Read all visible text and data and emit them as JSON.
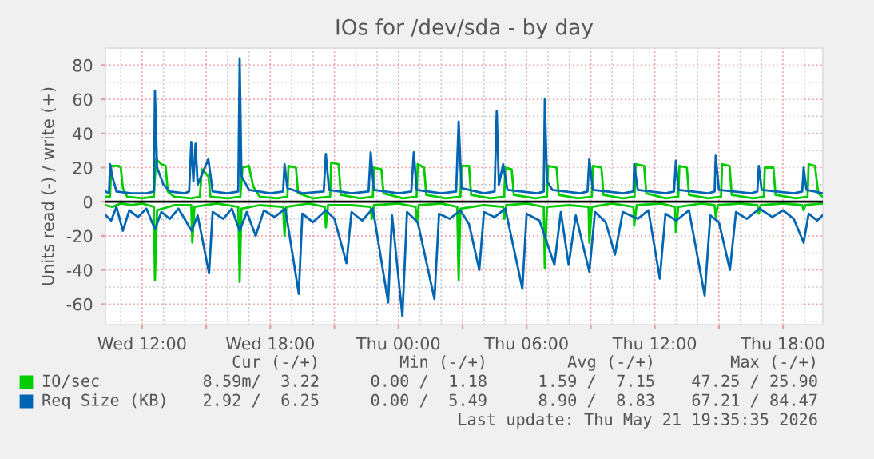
{
  "chart_data": {
    "type": "line",
    "title": "IOs for /dev/sda - by day",
    "ylabel": "Units read (-) / write (+)",
    "xlim": [
      "2026-05-20T10:17",
      "2026-05-21T19:52"
    ],
    "ylim": [
      -72,
      90
    ],
    "xticks": [
      {
        "value": "2026-05-20T12:00",
        "label": "Wed 12:00"
      },
      {
        "value": "2026-05-20T15:00",
        "label": null
      },
      {
        "value": "2026-05-20T18:00",
        "label": "Wed 18:00"
      },
      {
        "value": "2026-05-20T21:00",
        "label": null
      },
      {
        "value": "2026-05-21T00:00",
        "label": "Thu 00:00"
      },
      {
        "value": "2026-05-21T03:00",
        "label": null
      },
      {
        "value": "2026-05-21T06:00",
        "label": "Thu 06:00"
      },
      {
        "value": "2026-05-21T09:00",
        "label": null
      },
      {
        "value": "2026-05-21T12:00",
        "label": "Thu 12:00"
      },
      {
        "value": "2026-05-21T15:00",
        "label": null
      },
      {
        "value": "2026-05-21T18:00",
        "label": "Thu 18:00"
      }
    ],
    "yticks": [
      -60,
      -40,
      -20,
      0,
      20,
      40,
      60,
      80
    ],
    "grid": true,
    "legend": "bottom",
    "ref_lines": [
      {
        "axis": "y",
        "value": 0,
        "label": null,
        "color": "#000000"
      }
    ],
    "series": [
      {
        "name": "IO/sec",
        "color": "#00cc00",
        "x": [
          "2026-05-20T10:18",
          "2026-05-20T10:30",
          "2026-05-20T10:33",
          "2026-05-20T10:54",
          "2026-05-20T11:00",
          "2026-05-20T11:06",
          "2026-05-20T11:18",
          "2026-05-20T12:00",
          "2026-05-20T12:33",
          "2026-05-20T12:39",
          "2026-05-20T12:54",
          "2026-05-20T13:06",
          "2026-05-20T13:12",
          "2026-05-20T13:30",
          "2026-05-20T14:18",
          "2026-05-20T14:42",
          "2026-05-20T14:48",
          "2026-05-20T15:06",
          "2026-05-20T15:12",
          "2026-05-20T16:00",
          "2026-05-20T16:36",
          "2026-05-20T16:42",
          "2026-05-20T17:00",
          "2026-05-20T17:12",
          "2026-05-20T17:30",
          "2026-05-20T18:18",
          "2026-05-20T18:48",
          "2026-05-20T18:51",
          "2026-05-20T19:12",
          "2026-05-20T19:18",
          "2026-05-20T20:00",
          "2026-05-20T20:48",
          "2026-05-20T20:51",
          "2026-05-20T21:12",
          "2026-05-20T21:18",
          "2026-05-20T22:12",
          "2026-05-20T22:48",
          "2026-05-20T22:51",
          "2026-05-20T23:12",
          "2026-05-20T23:18",
          "2026-05-21T00:12",
          "2026-05-21T00:51",
          "2026-05-21T00:54",
          "2026-05-21T01:12",
          "2026-05-21T01:18",
          "2026-05-21T02:12",
          "2026-05-21T02:54",
          "2026-05-21T02:57",
          "2026-05-21T03:18",
          "2026-05-21T03:24",
          "2026-05-21T04:18",
          "2026-05-21T04:57",
          "2026-05-21T05:00",
          "2026-05-21T05:18",
          "2026-05-21T05:24",
          "2026-05-21T06:24",
          "2026-05-21T06:57",
          "2026-05-21T07:00",
          "2026-05-21T07:24",
          "2026-05-21T07:30",
          "2026-05-21T08:24",
          "2026-05-21T09:03",
          "2026-05-21T09:06",
          "2026-05-21T09:30",
          "2026-05-21T09:36",
          "2026-05-21T10:30",
          "2026-05-21T11:03",
          "2026-05-21T11:06",
          "2026-05-21T11:30",
          "2026-05-21T11:36",
          "2026-05-21T12:30",
          "2026-05-21T13:06",
          "2026-05-21T13:09",
          "2026-05-21T13:30",
          "2026-05-21T13:36",
          "2026-05-21T14:30",
          "2026-05-21T15:06",
          "2026-05-21T15:09",
          "2026-05-21T15:30",
          "2026-05-21T15:36",
          "2026-05-21T16:36",
          "2026-05-21T17:06",
          "2026-05-21T17:09",
          "2026-05-21T17:33",
          "2026-05-21T17:39",
          "2026-05-21T18:36",
          "2026-05-21T19:09",
          "2026-05-21T19:12",
          "2026-05-21T19:30",
          "2026-05-21T19:39",
          "2026-05-21T19:51"
        ],
        "values": [
          3,
          3,
          21,
          21,
          20,
          8,
          3,
          2,
          3,
          25,
          22,
          21,
          6,
          3,
          2,
          3,
          19,
          15,
          3,
          2,
          3,
          20,
          21,
          9,
          3,
          2,
          3,
          21,
          20,
          5,
          2,
          3,
          23,
          22,
          4,
          2,
          3,
          20,
          19,
          5,
          2,
          3,
          22,
          20,
          4,
          2,
          3,
          21,
          21,
          4,
          2,
          3,
          20,
          19,
          4,
          2,
          3,
          21,
          20,
          4,
          2,
          3,
          21,
          20,
          4,
          2,
          3,
          22,
          21,
          5,
          2,
          3,
          21,
          20,
          4,
          2,
          3,
          22,
          21,
          4,
          2,
          3,
          20,
          20,
          4,
          2,
          3,
          22,
          21,
          5,
          3
        ]
      },
      {
        "color": "#00cc00",
        "x": [
          "2026-05-20T10:18",
          "2026-05-20T10:36",
          "2026-05-20T11:00",
          "2026-05-20T11:30",
          "2026-05-20T12:00",
          "2026-05-20T12:33",
          "2026-05-20T12:36",
          "2026-05-20T12:42",
          "2026-05-20T13:30",
          "2026-05-20T14:18",
          "2026-05-20T14:21",
          "2026-05-20T14:27",
          "2026-05-20T15:30",
          "2026-05-20T16:30",
          "2026-05-20T16:34",
          "2026-05-20T16:39",
          "2026-05-20T17:30",
          "2026-05-20T18:36",
          "2026-05-20T18:40",
          "2026-05-20T18:45",
          "2026-05-20T19:48",
          "2026-05-20T20:33",
          "2026-05-20T20:36",
          "2026-05-20T20:42",
          "2026-05-20T21:48",
          "2026-05-20T22:42",
          "2026-05-20T22:45",
          "2026-05-20T22:51",
          "2026-05-21T00:00",
          "2026-05-21T00:48",
          "2026-05-21T00:52",
          "2026-05-21T00:57",
          "2026-05-21T02:00",
          "2026-05-21T02:45",
          "2026-05-21T02:49",
          "2026-05-21T02:54",
          "2026-05-21T04:00",
          "2026-05-21T04:54",
          "2026-05-21T04:57",
          "2026-05-21T05:03",
          "2026-05-21T06:00",
          "2026-05-21T06:48",
          "2026-05-21T06:51",
          "2026-05-21T06:57",
          "2026-05-21T08:00",
          "2026-05-21T08:54",
          "2026-05-21T08:56",
          "2026-05-21T09:03",
          "2026-05-21T10:00",
          "2026-05-21T11:00",
          "2026-05-21T11:02",
          "2026-05-21T11:09",
          "2026-05-21T12:18",
          "2026-05-21T12:57",
          "2026-05-21T12:59",
          "2026-05-21T13:06",
          "2026-05-21T14:12",
          "2026-05-21T14:48",
          "2026-05-21T14:51",
          "2026-05-21T14:57",
          "2026-05-21T16:00",
          "2026-05-21T16:48",
          "2026-05-21T16:52",
          "2026-05-21T16:57",
          "2026-05-21T18:00",
          "2026-05-21T18:54",
          "2026-05-21T18:58",
          "2026-05-21T19:03",
          "2026-05-21T19:51"
        ],
        "values": [
          -2,
          -3,
          -1,
          -2,
          -1,
          -3,
          -46,
          -5,
          -2,
          -2,
          -24,
          -3,
          -1,
          -3,
          -47,
          -4,
          -2,
          -3,
          -20,
          -3,
          -1,
          -3,
          -15,
          -2,
          -2,
          -3,
          -10,
          -2,
          -1,
          -3,
          -12,
          -2,
          -1,
          -3,
          -46,
          -4,
          -2,
          -3,
          -10,
          -2,
          -1,
          -3,
          -39,
          -3,
          -2,
          -3,
          -24,
          -3,
          -1,
          -3,
          -14,
          -2,
          -1,
          -3,
          -18,
          -3,
          -1,
          -2,
          -9,
          -2,
          -1,
          -2,
          -7,
          -2,
          -1,
          -2,
          -5,
          -2,
          -1
        ]
      },
      {
        "name": "Req Size (KB)",
        "color": "#0066b3",
        "x": [
          "2026-05-20T10:18",
          "2026-05-20T10:27",
          "2026-05-20T10:30",
          "2026-05-20T10:36",
          "2026-05-20T10:48",
          "2026-05-20T11:30",
          "2026-05-20T12:12",
          "2026-05-20T12:33",
          "2026-05-20T12:36",
          "2026-05-20T12:42",
          "2026-05-20T13:00",
          "2026-05-20T13:18",
          "2026-05-20T14:00",
          "2026-05-20T14:12",
          "2026-05-20T14:18",
          "2026-05-20T14:24",
          "2026-05-20T14:30",
          "2026-05-20T14:36",
          "2026-05-20T15:06",
          "2026-05-20T15:18",
          "2026-05-20T16:00",
          "2026-05-20T16:30",
          "2026-05-20T16:34",
          "2026-05-20T16:39",
          "2026-05-20T17:00",
          "2026-05-20T18:00",
          "2026-05-20T18:36",
          "2026-05-20T18:40",
          "2026-05-20T18:48",
          "2026-05-20T19:30",
          "2026-05-20T20:30",
          "2026-05-20T20:36",
          "2026-05-20T20:45",
          "2026-05-20T21:48",
          "2026-05-20T22:36",
          "2026-05-20T22:42",
          "2026-05-20T22:51",
          "2026-05-21T00:00",
          "2026-05-21T00:36",
          "2026-05-21T00:43",
          "2026-05-21T00:51",
          "2026-05-21T02:00",
          "2026-05-21T02:42",
          "2026-05-21T02:49",
          "2026-05-21T02:57",
          "2026-05-21T04:00",
          "2026-05-21T04:30",
          "2026-05-21T04:36",
          "2026-05-21T04:42",
          "2026-05-21T04:54",
          "2026-05-21T05:06",
          "2026-05-21T06:30",
          "2026-05-21T06:48",
          "2026-05-21T06:51",
          "2026-05-21T06:57",
          "2026-05-21T07:12",
          "2026-05-21T08:30",
          "2026-05-21T08:51",
          "2026-05-21T08:56",
          "2026-05-21T09:06",
          "2026-05-21T10:30",
          "2026-05-21T11:00",
          "2026-05-21T11:02",
          "2026-05-21T11:12",
          "2026-05-21T12:30",
          "2026-05-21T12:54",
          "2026-05-21T12:59",
          "2026-05-21T13:06",
          "2026-05-21T14:30",
          "2026-05-21T14:48",
          "2026-05-21T14:51",
          "2026-05-21T15:00",
          "2026-05-21T16:30",
          "2026-05-21T16:48",
          "2026-05-21T16:52",
          "2026-05-21T17:00",
          "2026-05-21T18:30",
          "2026-05-21T18:54",
          "2026-05-21T18:58",
          "2026-05-21T19:06",
          "2026-05-21T19:51"
        ],
        "values": [
          6,
          5,
          22,
          15,
          6,
          5,
          5,
          6,
          65,
          20,
          10,
          6,
          5,
          6,
          35,
          12,
          34,
          10,
          25,
          6,
          5,
          6,
          84,
          15,
          7,
          5,
          6,
          22,
          8,
          5,
          6,
          28,
          7,
          5,
          6,
          29,
          7,
          5,
          6,
          29,
          7,
          5,
          6,
          47,
          8,
          5,
          6,
          53,
          10,
          22,
          7,
          5,
          6,
          60,
          12,
          7,
          5,
          6,
          25,
          7,
          5,
          6,
          22,
          7,
          5,
          6,
          24,
          7,
          5,
          6,
          27,
          7,
          5,
          6,
          21,
          7,
          5,
          6,
          20,
          7,
          5
        ]
      },
      {
        "color": "#0066b3",
        "x": [
          "2026-05-20T10:18",
          "2026-05-20T10:33",
          "2026-05-20T10:48",
          "2026-05-20T11:06",
          "2026-05-20T11:24",
          "2026-05-20T11:48",
          "2026-05-20T12:12",
          "2026-05-20T12:36",
          "2026-05-20T12:54",
          "2026-05-20T13:18",
          "2026-05-20T13:42",
          "2026-05-20T14:19",
          "2026-05-20T14:36",
          "2026-05-20T15:08",
          "2026-05-20T15:18",
          "2026-05-20T15:48",
          "2026-05-20T16:12",
          "2026-05-20T16:34",
          "2026-05-20T16:54",
          "2026-05-20T17:19",
          "2026-05-20T17:42",
          "2026-05-20T18:12",
          "2026-05-20T18:42",
          "2026-05-20T19:20",
          "2026-05-20T19:30",
          "2026-05-20T20:00",
          "2026-05-20T20:36",
          "2026-05-20T21:00",
          "2026-05-20T21:34",
          "2026-05-20T21:48",
          "2026-05-20T22:18",
          "2026-05-20T22:48",
          "2026-05-20T23:31",
          "2026-05-20T23:42",
          "2026-05-21T00:11",
          "2026-05-21T00:24",
          "2026-05-21T00:54",
          "2026-05-21T01:41",
          "2026-05-21T01:54",
          "2026-05-21T02:24",
          "2026-05-21T02:54",
          "2026-05-21T03:18",
          "2026-05-21T03:47",
          "2026-05-21T04:00",
          "2026-05-21T04:30",
          "2026-05-21T05:00",
          "2026-05-21T05:48",
          "2026-05-21T06:00",
          "2026-05-21T06:36",
          "2026-05-21T07:18",
          "2026-05-21T07:36",
          "2026-05-21T07:58",
          "2026-05-21T08:18",
          "2026-05-21T08:56",
          "2026-05-21T09:12",
          "2026-05-21T09:42",
          "2026-05-21T10:08",
          "2026-05-21T10:30",
          "2026-05-21T11:12",
          "2026-05-21T11:42",
          "2026-05-21T12:14",
          "2026-05-21T12:30",
          "2026-05-21T13:00",
          "2026-05-21T13:36",
          "2026-05-21T14:20",
          "2026-05-21T14:36",
          "2026-05-21T15:00",
          "2026-05-21T15:31",
          "2026-05-21T15:48",
          "2026-05-21T16:18",
          "2026-05-21T16:54",
          "2026-05-21T17:30",
          "2026-05-21T18:00",
          "2026-05-21T18:30",
          "2026-05-21T18:58",
          "2026-05-21T19:12",
          "2026-05-21T19:36",
          "2026-05-21T19:51"
        ],
        "values": [
          -8,
          -11,
          -3,
          -17,
          -5,
          -9,
          -4,
          -16,
          -6,
          -10,
          -4,
          -17,
          -8,
          -42,
          -6,
          -10,
          -4,
          -17,
          -6,
          -20,
          -5,
          -9,
          -4,
          -54,
          -7,
          -12,
          -5,
          -10,
          -36,
          -6,
          -11,
          -4,
          -59,
          -8,
          -67,
          -6,
          -12,
          -57,
          -7,
          -10,
          -5,
          -13,
          -40,
          -6,
          -9,
          -4,
          -51,
          -7,
          -11,
          -37,
          -6,
          -37,
          -8,
          -41,
          -6,
          -12,
          -31,
          -6,
          -10,
          -5,
          -45,
          -7,
          -11,
          -5,
          -55,
          -8,
          -12,
          -40,
          -6,
          -10,
          -4,
          -9,
          -5,
          -10,
          -24,
          -7,
          -11,
          -8
        ]
      }
    ],
    "annotations": [
      "Cur (-/+)",
      "Min (-/+)",
      "Avg (-/+)",
      "Max (-/+)",
      "8.59m/  3.22",
      "0.00 /  1.18",
      "1.59 /  7.15",
      "47.25 / 25.90",
      "2.92 /  6.25",
      "0.00 /  5.49",
      "8.90 /  8.83",
      "67.21 / 84.47",
      "Last update: Thu May 21 19:35:35 2026"
    ]
  }
}
